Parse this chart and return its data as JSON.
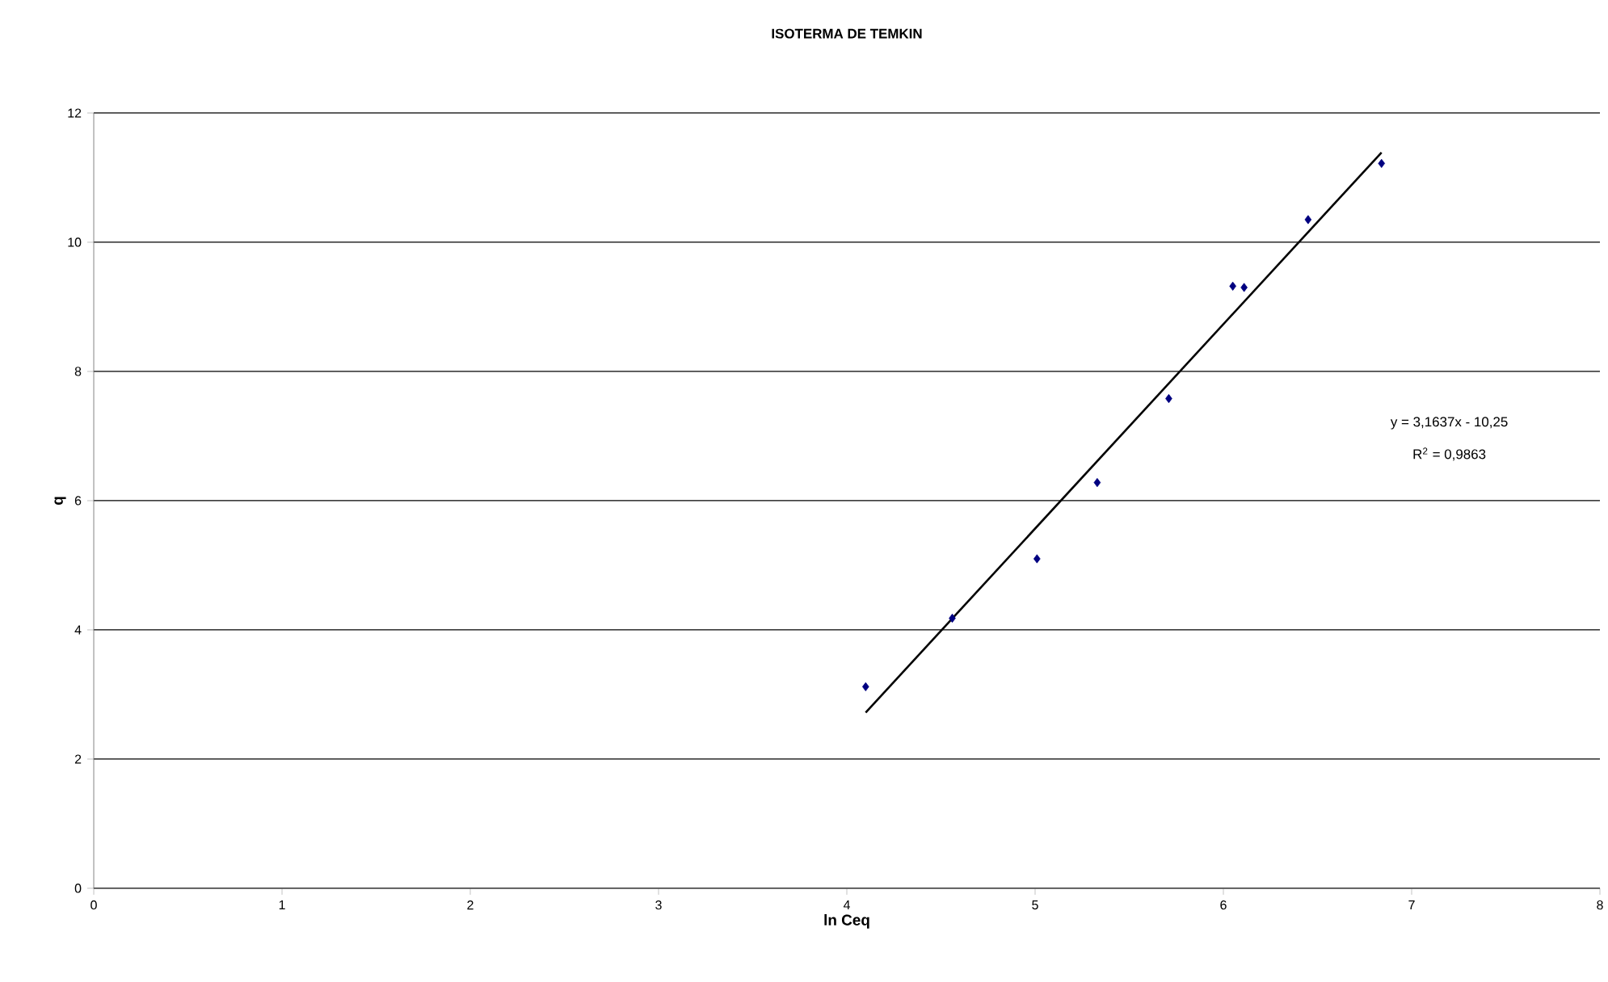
{
  "chart_data": {
    "type": "scatter",
    "title": "ISOTERMA DE TEMKIN",
    "xlabel": "ln Ceq",
    "ylabel": "q",
    "x": [
      4.1,
      4.56,
      5.01,
      5.33,
      5.71,
      6.05,
      6.11,
      6.45,
      6.84
    ],
    "series": [
      {
        "color": "#000080",
        "marker": "diamond",
        "values": [
          3.12,
          4.18,
          5.1,
          6.28,
          7.58,
          9.32,
          9.3,
          10.35,
          11.22
        ]
      },
      {
        "type": "line",
        "color": "#000000",
        "marker": "none",
        "line_style": "solid",
        "x": [
          4.1,
          6.84
        ],
        "values": [
          2.72,
          11.39
        ]
      }
    ],
    "annotations": [
      "y = 3,1637x - 10,25",
      "R$^{2}$ = 0,9863"
    ],
    "xlim": [
      0,
      8
    ],
    "ylim": [
      0,
      12
    ],
    "xticks": [
      0,
      1,
      2,
      3,
      4,
      5,
      6,
      7,
      8
    ],
    "yticks": [
      0,
      2,
      4,
      6,
      8,
      10,
      12
    ],
    "grid": "y"
  }
}
